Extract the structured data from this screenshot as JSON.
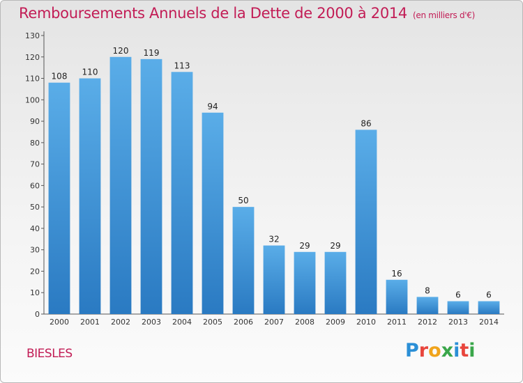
{
  "title": "Remboursements Annuels de la Dette de 2000 à 2014",
  "unit_note": "(en milliers d'€)",
  "commune": "BIESLES",
  "logo": {
    "text": "Proxiti",
    "colors": [
      "#2b8fd6",
      "#e8453c",
      "#f0a41c",
      "#3aa64a",
      "#2b8fd6",
      "#e8453c",
      "#3aa64a"
    ]
  },
  "colors": {
    "bar_top": "#5aade8",
    "bar_bottom": "#2a7ac2",
    "title": "#c21c55"
  },
  "chart_data": {
    "type": "bar",
    "categories": [
      "2000",
      "2001",
      "2002",
      "2003",
      "2004",
      "2005",
      "2006",
      "2007",
      "2008",
      "2009",
      "2010",
      "2011",
      "2012",
      "2013",
      "2014"
    ],
    "values": [
      108,
      110,
      120,
      119,
      113,
      94,
      50,
      32,
      29,
      29,
      86,
      16,
      8,
      6,
      6
    ],
    "title": "Remboursements Annuels de la Dette de 2000 à 2014",
    "xlabel": "",
    "ylabel": "",
    "ylim": [
      0,
      130
    ],
    "yticks": [
      0,
      10,
      20,
      30,
      40,
      50,
      60,
      70,
      80,
      90,
      100,
      110,
      120,
      130
    ],
    "grid": false,
    "data_labels": true
  }
}
